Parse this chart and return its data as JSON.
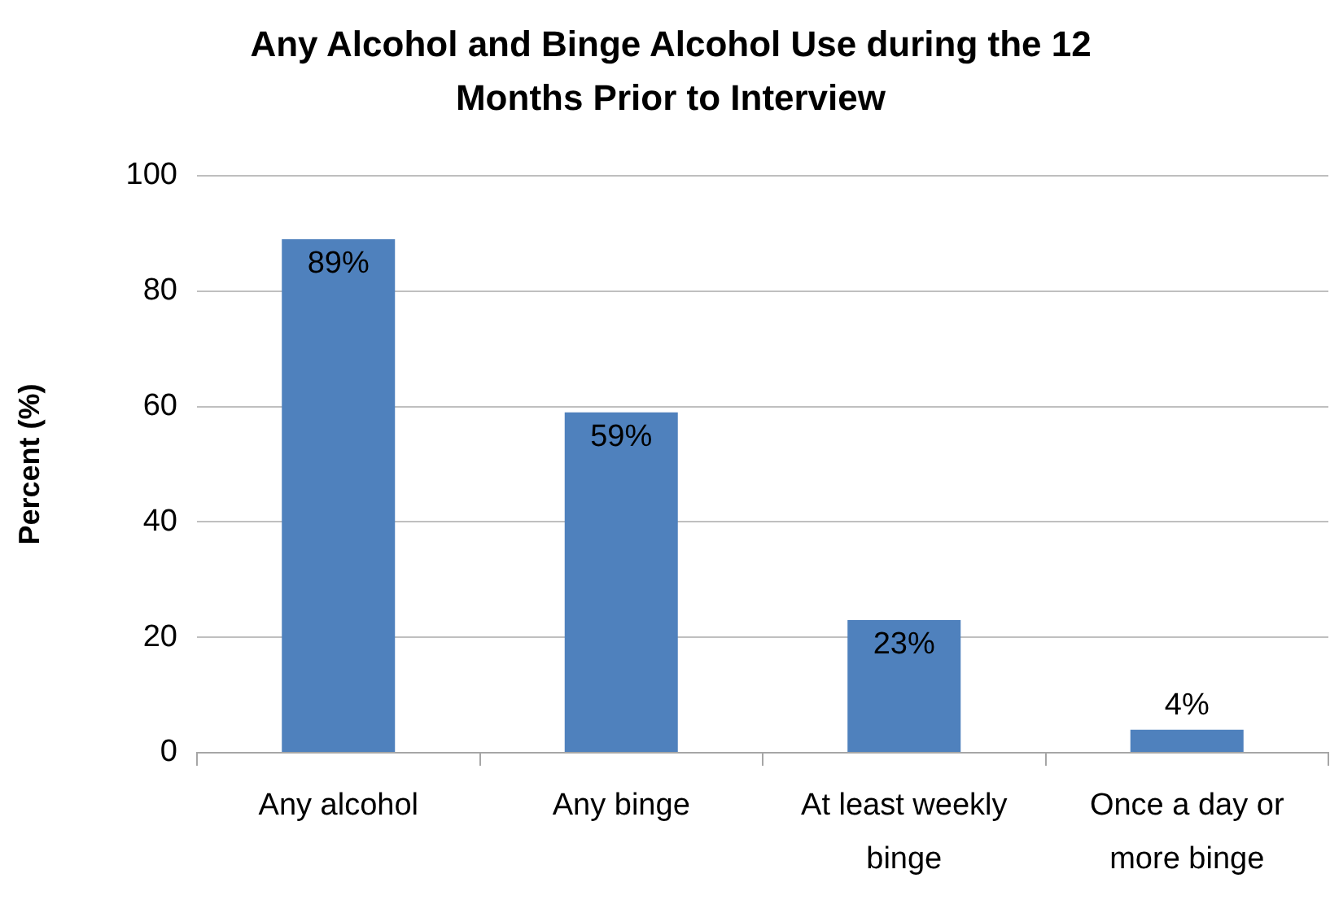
{
  "chart_data": {
    "type": "bar",
    "title": "Any Alcohol and Binge Alcohol Use during the 12 Months Prior to Interview",
    "ylabel": "Percent (%)",
    "categories": [
      "Any alcohol",
      "Any binge",
      "At least weekly binge",
      "Once a day or more binge"
    ],
    "values": [
      89,
      59,
      23,
      4
    ],
    "value_labels": [
      "89%",
      "59%",
      "23%",
      "4%"
    ],
    "color": "#4f81bd",
    "ylim": [
      0,
      100
    ],
    "yticks": [
      0,
      20,
      40,
      60,
      80,
      100
    ],
    "grid": "y"
  }
}
